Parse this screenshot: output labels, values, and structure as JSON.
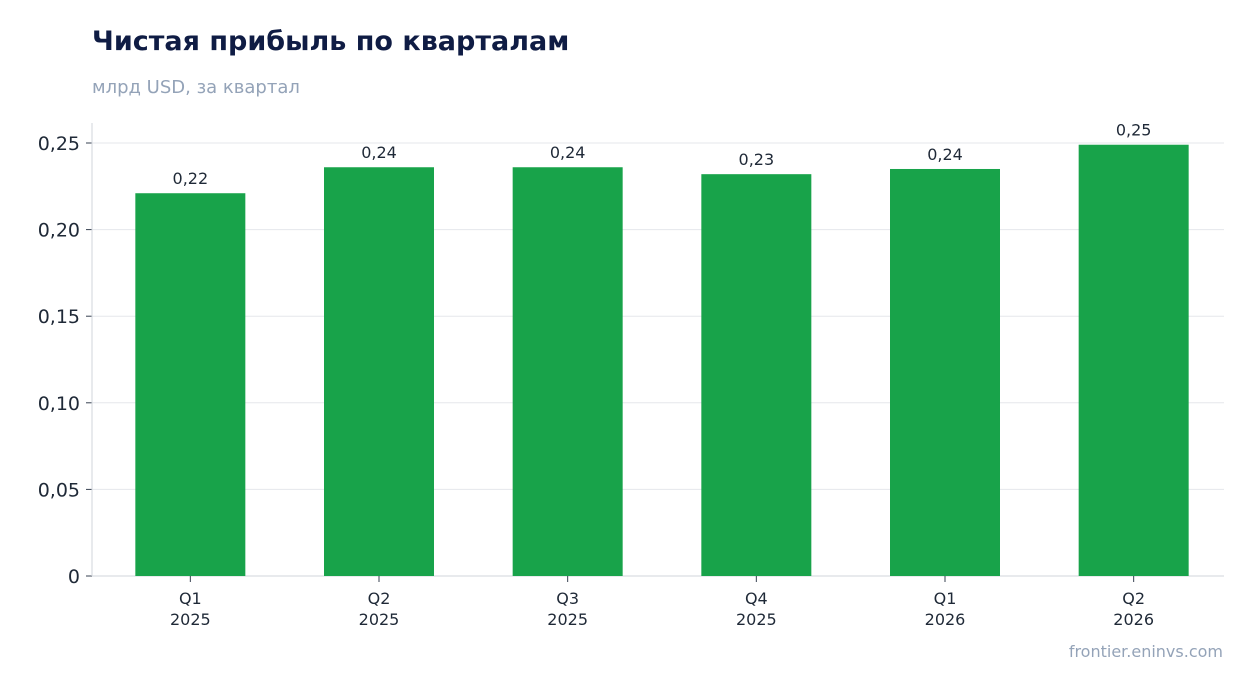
{
  "title": "Чистая прибыль по кварталам",
  "subtitle": "млрд USD, за квартал",
  "watermark": "frontier.eninvs.com",
  "colors": {
    "bar": "#18a34a",
    "grid": "#e5e7eb",
    "axis": "#d1d5db"
  },
  "chart_data": {
    "type": "bar",
    "categories": [
      [
        "Q1",
        "2025"
      ],
      [
        "Q2",
        "2025"
      ],
      [
        "Q3",
        "2025"
      ],
      [
        "Q4",
        "2025"
      ],
      [
        "Q1",
        "2026"
      ],
      [
        "Q2",
        "2026"
      ]
    ],
    "values": [
      0.221,
      0.236,
      0.236,
      0.232,
      0.235,
      0.249
    ],
    "data_labels": [
      "0,22",
      "0,24",
      "0,24",
      "0,23",
      "0,24",
      "0,25"
    ],
    "ylim": [
      0,
      0.25
    ],
    "yticks": [
      0,
      0.05,
      0.1,
      0.15,
      0.2,
      0.25
    ],
    "ytick_labels": [
      "0",
      "0,05",
      "0,10",
      "0,15",
      "0,20",
      "0,25"
    ],
    "grid": true,
    "xlabel": "",
    "ylabel": ""
  }
}
